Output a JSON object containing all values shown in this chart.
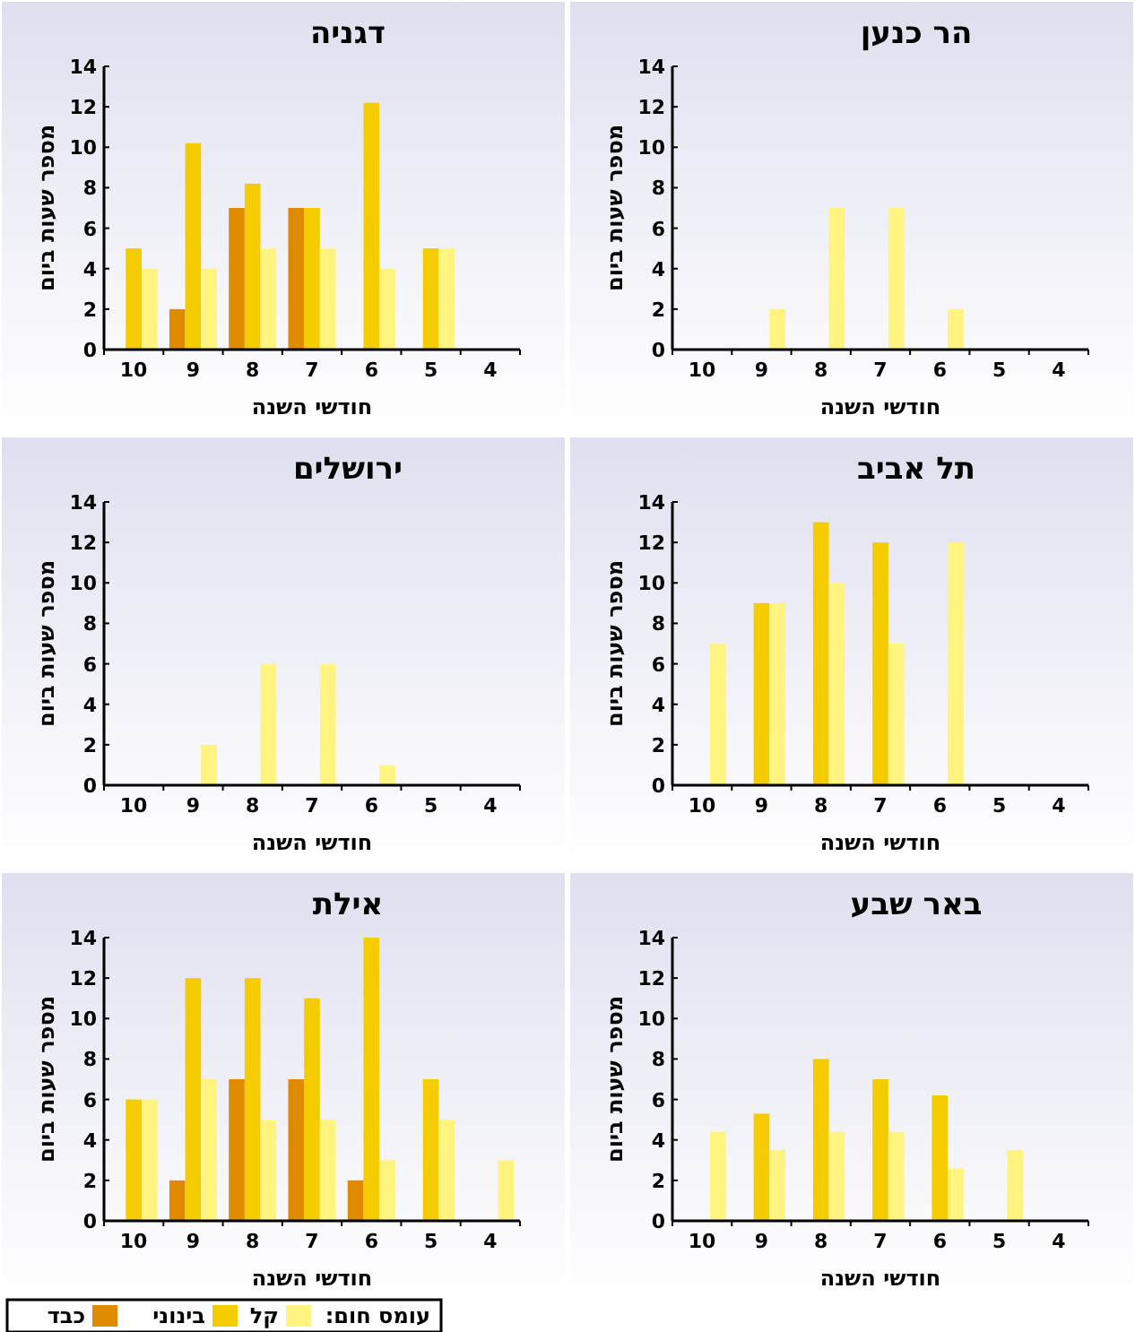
{
  "chart_data": [
    {
      "type": "bar",
      "title": "דגניה",
      "xlabel": "חודשי השנה",
      "ylabel": "מספר שעות ביום",
      "categories": [
        "10",
        "9",
        "8",
        "7",
        "6",
        "5",
        "4"
      ],
      "ylim": [
        0,
        14
      ],
      "yticks": [
        0,
        2,
        4,
        6,
        8,
        10,
        12,
        14
      ],
      "series": [
        {
          "color": "#e08a00",
          "values": [
            null,
            2,
            7,
            7,
            null,
            null,
            null
          ]
        },
        {
          "color": "#f5cc00",
          "values": [
            5,
            10.2,
            8.2,
            7,
            12.2,
            5,
            null
          ]
        },
        {
          "color": "#fff47f",
          "values": [
            4,
            4,
            5,
            5,
            4,
            5,
            null
          ]
        }
      ]
    },
    {
      "type": "bar",
      "title": "הר כנען",
      "xlabel": "חודשי השנה",
      "ylabel": "מספר שעות ביום",
      "categories": [
        "10",
        "9",
        "8",
        "7",
        "6",
        "5",
        "4"
      ],
      "ylim": [
        0,
        14
      ],
      "yticks": [
        0,
        2,
        4,
        6,
        8,
        10,
        12,
        14
      ],
      "series": [
        {
          "color": "#fff47f",
          "values": [
            null,
            2,
            7,
            7,
            2,
            null,
            null
          ]
        }
      ]
    },
    {
      "type": "bar",
      "title": "ירושלים",
      "xlabel": "חודשי השנה",
      "ylabel": "מספר שעות ביום",
      "categories": [
        "10",
        "9",
        "8",
        "7",
        "6",
        "5",
        "4"
      ],
      "ylim": [
        0,
        14
      ],
      "yticks": [
        0,
        2,
        4,
        6,
        8,
        10,
        12,
        14
      ],
      "series": [
        {
          "color": "#fff47f",
          "values": [
            null,
            2,
            6,
            6,
            1,
            null,
            null
          ]
        }
      ]
    },
    {
      "type": "bar",
      "title": "תל אביב",
      "xlabel": "חודשי השנה",
      "ylabel": "מספר שעות ביום",
      "categories": [
        "10",
        "9",
        "8",
        "7",
        "6",
        "5",
        "4"
      ],
      "ylim": [
        0,
        14
      ],
      "yticks": [
        0,
        2,
        4,
        6,
        8,
        10,
        12,
        14
      ],
      "series": [
        {
          "color": "#f5cc00",
          "values": [
            null,
            9,
            13,
            12,
            null,
            null,
            null
          ]
        },
        {
          "color": "#fff47f",
          "values": [
            7,
            9,
            10,
            7,
            12,
            null,
            null
          ]
        }
      ]
    },
    {
      "type": "bar",
      "title": "אילת",
      "xlabel": "חודשי השנה",
      "ylabel": "מספר שעות ביום",
      "categories": [
        "10",
        "9",
        "8",
        "7",
        "6",
        "5",
        "4"
      ],
      "ylim": [
        0,
        14
      ],
      "yticks": [
        0,
        2,
        4,
        6,
        8,
        10,
        12,
        14
      ],
      "legend": "bottom",
      "legend_title": "עומס חום:",
      "series": [
        {
          "name": "כבד",
          "color": "#e08a00",
          "values": [
            null,
            2,
            7,
            7,
            2,
            null,
            null
          ]
        },
        {
          "name": "בינוני",
          "color": "#f5cc00",
          "values": [
            6,
            12,
            12,
            11,
            14,
            7,
            null
          ]
        },
        {
          "name": "קל",
          "color": "#fff47f",
          "values": [
            6,
            7,
            5,
            5,
            3,
            5,
            3
          ]
        }
      ]
    },
    {
      "type": "bar",
      "title": "באר שבע",
      "xlabel": "חודשי השנה",
      "ylabel": "מספר שעות ביום",
      "categories": [
        "10",
        "9",
        "8",
        "7",
        "6",
        "5",
        "4"
      ],
      "ylim": [
        0,
        14
      ],
      "yticks": [
        0,
        2,
        4,
        6,
        8,
        10,
        12,
        14
      ],
      "series": [
        {
          "color": "#f5cc00",
          "values": [
            null,
            5.3,
            8,
            7,
            6.2,
            null,
            null
          ]
        },
        {
          "color": "#fff47f",
          "values": [
            4.4,
            3.5,
            4.4,
            4.4,
            2.6,
            3.5,
            null
          ]
        }
      ]
    }
  ]
}
